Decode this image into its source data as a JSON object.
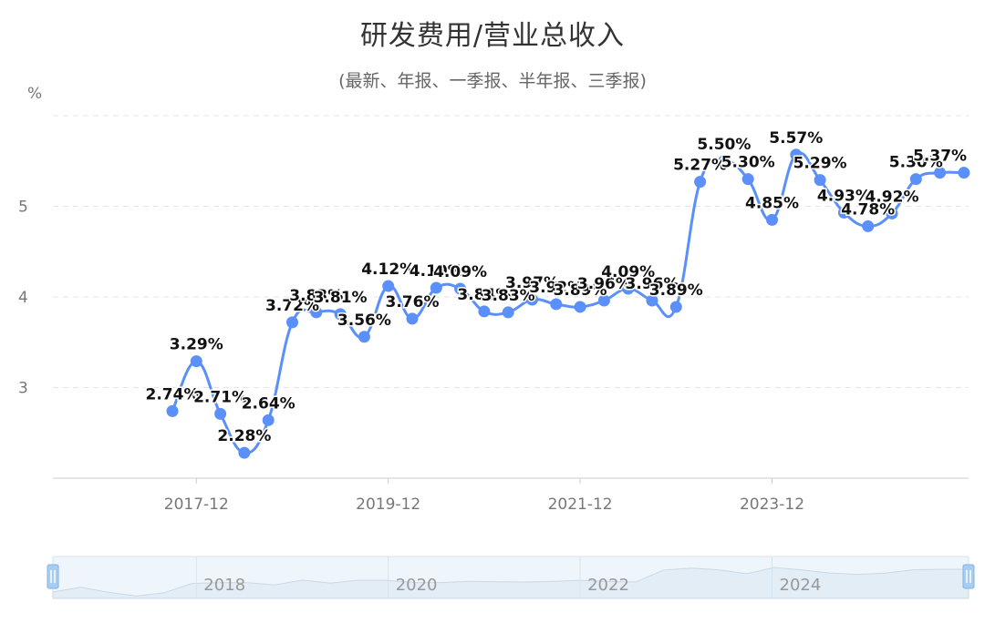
{
  "chart_data": {
    "type": "line",
    "title": "研发费用/营业总收入",
    "subtitle": "(最新、年报、一季报、半年报、三季报)",
    "ylabel": "%",
    "ylim": [
      2,
      6
    ],
    "yticks": [
      3,
      4,
      5
    ],
    "grid": true,
    "x_ticks": [
      "2017-12",
      "2019-12",
      "2021-12",
      "2023-12"
    ],
    "slider_ticks": [
      "2018",
      "2020",
      "2022",
      "2024"
    ],
    "color": "#5b8ff9",
    "series": [
      {
        "x": [
          "2017-09",
          "2017-12",
          "2018-03",
          "2018-06",
          "2018-09",
          "2018-12",
          "2019-03",
          "2019-06",
          "2019-09",
          "2019-12",
          "2020-03",
          "2020-06",
          "2020-09",
          "2020-12",
          "2021-03",
          "2021-06",
          "2021-09",
          "2021-12",
          "2022-03",
          "2022-06",
          "2022-09",
          "2022-12",
          "2023-03",
          "2023-06",
          "2023-09",
          "2023-12",
          "2024-03",
          "2024-06",
          "2024-09",
          "2024-12",
          "2025-03",
          "2025-06",
          "2025-09",
          "2025-12"
        ],
        "values": [
          2.74,
          3.29,
          2.71,
          2.28,
          2.64,
          3.72,
          3.83,
          3.81,
          3.56,
          4.12,
          3.76,
          4.1,
          4.09,
          3.84,
          3.83,
          3.97,
          3.92,
          3.89,
          3.96,
          4.09,
          3.96,
          3.89,
          5.27,
          5.5,
          5.3,
          4.85,
          5.57,
          5.29,
          4.93,
          4.78,
          4.92,
          5.3,
          5.37,
          5.37
        ],
        "labels": [
          "2.74%",
          "3.29%",
          "2.71%",
          "2.28%",
          "2.64%",
          "3.72%",
          "3.83%",
          "3.81%",
          "3.56%",
          "4.12%",
          "3.76%",
          "4.10%",
          "4.09%",
          "3.84%",
          "3.83%",
          "3.97%",
          "3.92%",
          "3.89%",
          "3.96%",
          "4.09%",
          "3.96%",
          "3.89%",
          "5.27%",
          "5.50%",
          "5.30%",
          "4.85%",
          "5.57%",
          "5.29%",
          "4.93%",
          "4.78%",
          "4.92%",
          "5.30%",
          "5.37%",
          ""
        ]
      }
    ]
  }
}
